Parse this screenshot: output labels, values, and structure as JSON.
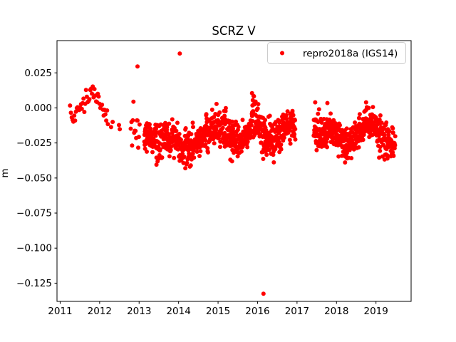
{
  "chart_data": {
    "type": "scatter",
    "title": "SCRZ V",
    "xlabel": "",
    "ylabel": "m",
    "xlim": [
      2010.92,
      2019.89
    ],
    "ylim": [
      -0.138,
      0.048
    ],
    "xticks": [
      2011,
      2012,
      2013,
      2014,
      2015,
      2016,
      2017,
      2018,
      2019
    ],
    "yticks": [
      0.025,
      0.0,
      -0.025,
      -0.05,
      -0.075,
      -0.1,
      -0.125
    ],
    "ytick_labels": [
      "0.025",
      "0.000",
      "−0.025",
      "−0.050",
      "−0.075",
      "−0.100",
      "−0.125"
    ],
    "grid": false,
    "marker": {
      "shape": "point",
      "color": "#ff0000",
      "radius_px": 3
    },
    "legend": {
      "position": "upper right",
      "entries": [
        {
          "label": "repro2018a (IGS14)",
          "color": "#ff0000",
          "marker": "point"
        }
      ]
    },
    "random_seed": 1337,
    "trend_means": [
      [
        2011.24,
        0.0
      ],
      [
        2011.35,
        -0.007
      ],
      [
        2011.45,
        -0.002
      ],
      [
        2011.6,
        0.005
      ],
      [
        2011.75,
        0.011
      ],
      [
        2011.88,
        0.01
      ],
      [
        2012.0,
        0.004
      ],
      [
        2012.1,
        -0.001
      ],
      [
        2012.22,
        -0.009
      ],
      [
        2012.5,
        -0.013
      ],
      [
        2012.9,
        -0.013
      ],
      [
        2013.13,
        -0.019
      ],
      [
        2013.4,
        -0.023
      ],
      [
        2013.65,
        -0.021
      ],
      [
        2013.9,
        -0.024
      ],
      [
        2014.1,
        -0.028
      ],
      [
        2014.3,
        -0.029
      ],
      [
        2014.55,
        -0.022
      ],
      [
        2014.8,
        -0.016
      ],
      [
        2015.0,
        -0.013
      ],
      [
        2015.2,
        -0.017
      ],
      [
        2015.45,
        -0.024
      ],
      [
        2015.6,
        -0.024
      ],
      [
        2015.75,
        -0.017
      ],
      [
        2015.88,
        -0.008
      ],
      [
        2016.0,
        -0.01
      ],
      [
        2016.15,
        -0.02
      ],
      [
        2016.35,
        -0.023
      ],
      [
        2016.55,
        -0.02
      ],
      [
        2016.75,
        -0.013
      ],
      [
        2016.95,
        -0.013
      ],
      [
        2017.42,
        -0.016
      ],
      [
        2017.65,
        -0.019
      ],
      [
        2017.85,
        -0.015
      ],
      [
        2018.05,
        -0.021
      ],
      [
        2018.25,
        -0.027
      ],
      [
        2018.45,
        -0.022
      ],
      [
        2018.65,
        -0.016
      ],
      [
        2018.8,
        -0.011
      ],
      [
        2019.0,
        -0.016
      ],
      [
        2019.2,
        -0.021
      ],
      [
        2019.4,
        -0.026
      ],
      [
        2019.49,
        -0.026
      ]
    ],
    "segments": [
      {
        "x_start": 2011.24,
        "x_end": 2012.22,
        "count": 46,
        "noise_sd": 0.0035
      },
      {
        "x_start": 2012.78,
        "x_end": 2013.02,
        "count": 14,
        "noise_sd": 0.0075
      },
      {
        "x_start": 2013.13,
        "x_end": 2016.96,
        "count": 800,
        "noise_sd": 0.006
      },
      {
        "x_start": 2017.42,
        "x_end": 2019.49,
        "count": 440,
        "noise_sd": 0.006
      }
    ],
    "extra_points": [
      [
        2012.29,
        -0.0137
      ],
      [
        2012.33,
        -0.01
      ],
      [
        2012.49,
        -0.0122
      ],
      [
        2012.51,
        -0.0152
      ],
      [
        2013.44,
        -0.0405
      ],
      [
        2014.17,
        -0.043
      ],
      [
        2014.31,
        -0.041
      ],
      [
        2015.86,
        0.0105
      ],
      [
        2015.88,
        0.0055
      ],
      [
        2015.9,
        0.0085
      ],
      [
        2015.92,
        0.0025
      ],
      [
        2015.95,
        0.0045
      ],
      [
        2017.46,
        0.004
      ],
      [
        2017.77,
        0.0035
      ],
      [
        2018.27,
        -0.036
      ],
      [
        2018.73,
        -0.002
      ],
      [
        2018.75,
        0.004
      ],
      [
        2018.77,
        0.0005
      ],
      [
        2019.08,
        -0.0355
      ]
    ],
    "outliers": [
      [
        2012.96,
        0.0296
      ],
      [
        2014.03,
        0.0388
      ],
      [
        2016.15,
        -0.1325
      ]
    ]
  }
}
